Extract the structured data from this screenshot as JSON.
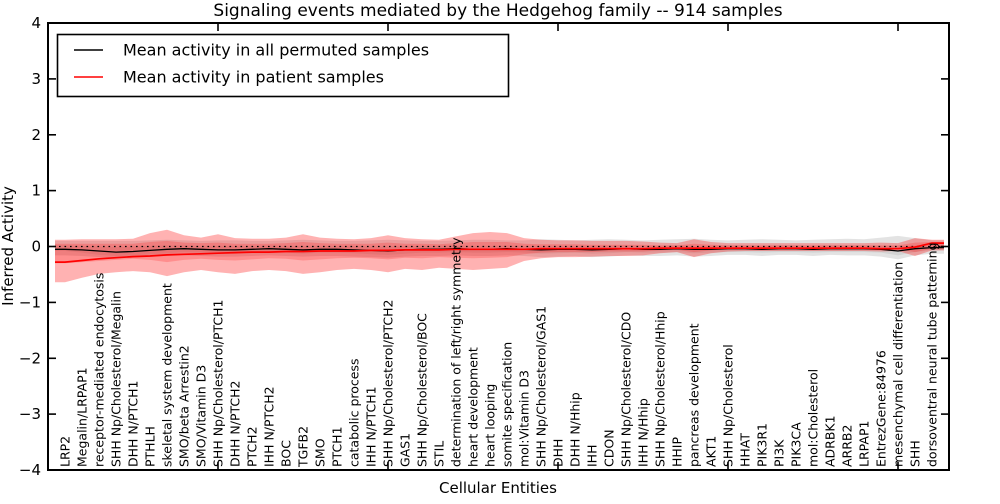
{
  "figure": {
    "title": "Signaling events mediated by the Hedgehog family -- 914 samples"
  },
  "chart_data": {
    "type": "line",
    "title": "Signaling events mediated by the Hedgehog family -- 914 samples",
    "xlabel": "Cellular Entities",
    "ylabel": "Inferred Activity",
    "ylim": [
      -4,
      4
    ],
    "xlim_units": [
      0,
      53
    ],
    "grid": false,
    "yticks": [
      4,
      3,
      2,
      1,
      0,
      -1,
      -2,
      -3,
      -4
    ],
    "ytick_labels": [
      "4",
      "3",
      "2",
      "1",
      "0",
      "−1",
      "−2",
      "−3",
      "−4"
    ],
    "xticks_major_units": [
      10,
      20,
      30,
      40,
      50
    ],
    "zero_line_y": 0,
    "zero_line_style": "dotted",
    "legend": {
      "position": "upper left",
      "entries": [
        {
          "label": "Mean activity in all permuted samples",
          "color": "#000000"
        },
        {
          "label": "Mean activity in patient samples",
          "color": "#ff0000"
        }
      ]
    },
    "categories": [
      "LRP2",
      "Megalin/LRPAP1",
      "receptor-mediated endocytosis",
      "SHH Np/Cholesterol/Megalin",
      "DHH N/PTCH1",
      "PTHLH",
      "skeletal system development",
      "SMO/beta Arrestin2",
      "SMO/Vitamin D3",
      "SHH Np/Cholesterol/PTCH1",
      "DHH N/PTCH2",
      "PTCH2",
      "IHH N/PTCH2",
      "BOC",
      "TGFB2",
      "SMO",
      "PTCH1",
      "catabolic process",
      "IHH N/PTCH1",
      "SHH Np/Cholesterol/PTCH2",
      "GAS1",
      "SHH Np/Cholesterol/BOC",
      "STIL",
      "determination of left/right symmetry",
      "heart development",
      "heart looping",
      "somite specification",
      "mol:Vitamin D3",
      "SHH Np/Cholesterol/GAS1",
      "DHH",
      "DHH N/Hhip",
      "IHH",
      "CDON",
      "SHH Np/Cholesterol/CDO",
      "IHH N/Hhip",
      "SHH Np/Cholesterol/Hhip",
      "HHIP",
      "pancreas development",
      "AKT1",
      "SHH Np/Cholesterol",
      "HHAT",
      "PIK3R1",
      "PI3K",
      "PIK3CA",
      "mol:Cholesterol",
      "ADRBK1",
      "ARRB2",
      "LRPAP1",
      "EntrezGene:84976",
      "mesenchymal cell differentiation",
      "SHH",
      "dorsoventral neural tube patterning"
    ],
    "series": [
      {
        "name": "Mean activity in all permuted samples",
        "color": "#000000",
        "line_width": 1.3,
        "band_color": "#000000",
        "band_outer_opacity": 0.11,
        "band_inner_opacity": 0.07,
        "values": [
          -0.05,
          -0.06,
          -0.08,
          -0.1,
          -0.09,
          -0.07,
          -0.05,
          -0.04,
          -0.05,
          -0.06,
          -0.06,
          -0.05,
          -0.04,
          -0.05,
          -0.06,
          -0.05,
          -0.05,
          -0.06,
          -0.07,
          -0.08,
          -0.06,
          -0.05,
          -0.05,
          -0.04,
          -0.05,
          -0.05,
          -0.04,
          -0.05,
          -0.06,
          -0.05,
          -0.05,
          -0.06,
          -0.05,
          -0.04,
          -0.05,
          -0.05,
          -0.04,
          -0.05,
          -0.05,
          -0.04,
          -0.04,
          -0.05,
          -0.04,
          -0.04,
          -0.05,
          -0.04,
          -0.04,
          -0.04,
          -0.05,
          -0.08,
          -0.04,
          -0.02
        ],
        "band_outer_upper": [
          0.1,
          0.1,
          0.1,
          0.1,
          0.1,
          0.11,
          0.12,
          0.11,
          0.1,
          0.11,
          0.11,
          0.1,
          0.1,
          0.11,
          0.12,
          0.11,
          0.1,
          0.1,
          0.11,
          0.12,
          0.11,
          0.1,
          0.1,
          0.11,
          0.12,
          0.12,
          0.11,
          0.11,
          0.13,
          0.12,
          0.11,
          0.12,
          0.13,
          0.12,
          0.11,
          0.12,
          0.13,
          0.14,
          0.12,
          0.11,
          0.12,
          0.13,
          0.12,
          0.11,
          0.12,
          0.13,
          0.14,
          0.13,
          0.16,
          0.19,
          0.15,
          0.11
        ],
        "band_outer_lower": [
          -0.16,
          -0.17,
          -0.19,
          -0.2,
          -0.19,
          -0.18,
          -0.17,
          -0.16,
          -0.17,
          -0.18,
          -0.18,
          -0.17,
          -0.16,
          -0.17,
          -0.18,
          -0.17,
          -0.17,
          -0.18,
          -0.19,
          -0.2,
          -0.18,
          -0.17,
          -0.17,
          -0.16,
          -0.17,
          -0.17,
          -0.16,
          -0.17,
          -0.19,
          -0.18,
          -0.17,
          -0.19,
          -0.18,
          -0.16,
          -0.17,
          -0.17,
          -0.16,
          -0.18,
          -0.17,
          -0.15,
          -0.15,
          -0.17,
          -0.15,
          -0.15,
          -0.17,
          -0.15,
          -0.16,
          -0.16,
          -0.18,
          -0.23,
          -0.16,
          -0.13
        ],
        "band_inner_upper": [
          0.02,
          0.01,
          0.0,
          -0.01,
          0.0,
          0.01,
          0.02,
          0.02,
          0.01,
          0.01,
          0.01,
          0.01,
          0.02,
          0.01,
          0.01,
          0.01,
          0.01,
          0.01,
          0.0,
          0.0,
          0.01,
          0.01,
          0.01,
          0.02,
          0.01,
          0.01,
          0.02,
          0.01,
          0.01,
          0.01,
          0.01,
          0.01,
          0.01,
          0.02,
          0.01,
          0.01,
          0.02,
          0.01,
          0.01,
          0.02,
          0.02,
          0.01,
          0.02,
          0.02,
          0.01,
          0.02,
          0.02,
          0.02,
          0.01,
          0.0,
          0.02,
          0.03
        ],
        "band_inner_lower": [
          -0.08,
          -0.11,
          -0.15,
          -0.17,
          -0.16,
          -0.14,
          -0.12,
          -0.1,
          -0.11,
          -0.12,
          -0.13,
          -0.11,
          -0.1,
          -0.11,
          -0.13,
          -0.11,
          -0.11,
          -0.12,
          -0.14,
          -0.15,
          -0.13,
          -0.11,
          -0.11,
          -0.1,
          -0.11,
          -0.11,
          -0.1,
          -0.11,
          -0.13,
          -0.12,
          -0.11,
          -0.13,
          -0.12,
          -0.1,
          -0.11,
          -0.11,
          -0.1,
          -0.12,
          -0.11,
          -0.1,
          -0.1,
          -0.11,
          -0.1,
          -0.1,
          -0.11,
          -0.1,
          -0.1,
          -0.1,
          -0.11,
          -0.16,
          -0.1,
          -0.07
        ]
      },
      {
        "name": "Mean activity in patient samples",
        "color": "#ff0000",
        "line_width": 1.7,
        "band_color": "#ff0000",
        "band_outer_opacity": 0.3,
        "band_inner_opacity": 0.2,
        "values": [
          -0.28,
          -0.25,
          -0.22,
          -0.2,
          -0.18,
          -0.17,
          -0.15,
          -0.14,
          -0.13,
          -0.12,
          -0.11,
          -0.1,
          -0.1,
          -0.09,
          -0.09,
          -0.08,
          -0.08,
          -0.08,
          -0.07,
          -0.07,
          -0.06,
          -0.06,
          -0.06,
          -0.05,
          -0.05,
          -0.05,
          -0.05,
          -0.05,
          -0.04,
          -0.04,
          -0.04,
          -0.04,
          -0.04,
          -0.04,
          -0.04,
          -0.03,
          -0.03,
          -0.03,
          -0.03,
          -0.03,
          -0.03,
          -0.03,
          -0.03,
          -0.03,
          -0.03,
          -0.03,
          -0.03,
          -0.03,
          -0.04,
          -0.04,
          -0.01,
          0.06
        ],
        "band_outer_upper": [
          0.12,
          0.13,
          0.13,
          0.13,
          0.14,
          0.24,
          0.3,
          0.2,
          0.16,
          0.22,
          0.15,
          0.14,
          0.14,
          0.16,
          0.22,
          0.16,
          0.14,
          0.13,
          0.15,
          0.2,
          0.15,
          0.13,
          0.12,
          0.18,
          0.24,
          0.26,
          0.24,
          0.15,
          0.12,
          0.11,
          0.11,
          0.1,
          0.1,
          0.1,
          0.09,
          0.07,
          0.06,
          0.13,
          0.08,
          0.06,
          0.06,
          0.06,
          0.06,
          0.06,
          0.06,
          0.06,
          0.06,
          0.06,
          0.07,
          0.06,
          0.15,
          0.12
        ],
        "band_outer_lower": [
          -0.64,
          -0.56,
          -0.49,
          -0.46,
          -0.44,
          -0.46,
          -0.53,
          -0.46,
          -0.42,
          -0.46,
          -0.49,
          -0.44,
          -0.42,
          -0.44,
          -0.49,
          -0.46,
          -0.42,
          -0.4,
          -0.42,
          -0.46,
          -0.4,
          -0.42,
          -0.38,
          -0.4,
          -0.42,
          -0.4,
          -0.38,
          -0.26,
          -0.21,
          -0.19,
          -0.19,
          -0.18,
          -0.17,
          -0.17,
          -0.16,
          -0.12,
          -0.1,
          -0.19,
          -0.12,
          -0.09,
          -0.08,
          -0.08,
          -0.08,
          -0.08,
          -0.08,
          -0.08,
          -0.08,
          -0.08,
          -0.09,
          -0.08,
          -0.17,
          -0.07
        ],
        "band_inner_upper": [
          0.05,
          0.05,
          0.05,
          0.05,
          0.05,
          0.08,
          0.1,
          0.07,
          0.06,
          0.07,
          0.05,
          0.05,
          0.05,
          0.06,
          0.08,
          0.06,
          0.05,
          0.05,
          0.05,
          0.07,
          0.05,
          0.05,
          0.04,
          0.06,
          0.08,
          0.08,
          0.08,
          0.05,
          0.04,
          0.04,
          0.04,
          0.03,
          0.03,
          0.03,
          0.03,
          0.02,
          0.02,
          0.05,
          0.03,
          0.02,
          0.02,
          0.02,
          0.02,
          0.02,
          0.02,
          0.02,
          0.02,
          0.02,
          0.02,
          0.02,
          0.07,
          0.08
        ],
        "band_inner_lower": [
          -0.3,
          -0.28,
          -0.26,
          -0.24,
          -0.22,
          -0.24,
          -0.28,
          -0.24,
          -0.22,
          -0.24,
          -0.25,
          -0.23,
          -0.21,
          -0.22,
          -0.25,
          -0.23,
          -0.21,
          -0.2,
          -0.21,
          -0.23,
          -0.2,
          -0.21,
          -0.19,
          -0.2,
          -0.21,
          -0.2,
          -0.19,
          -0.14,
          -0.11,
          -0.1,
          -0.1,
          -0.1,
          -0.09,
          -0.09,
          -0.09,
          -0.07,
          -0.06,
          -0.1,
          -0.07,
          -0.05,
          -0.05,
          -0.05,
          -0.05,
          -0.05,
          -0.05,
          -0.05,
          -0.05,
          -0.05,
          -0.06,
          -0.05,
          -0.1,
          -0.04
        ]
      }
    ]
  }
}
